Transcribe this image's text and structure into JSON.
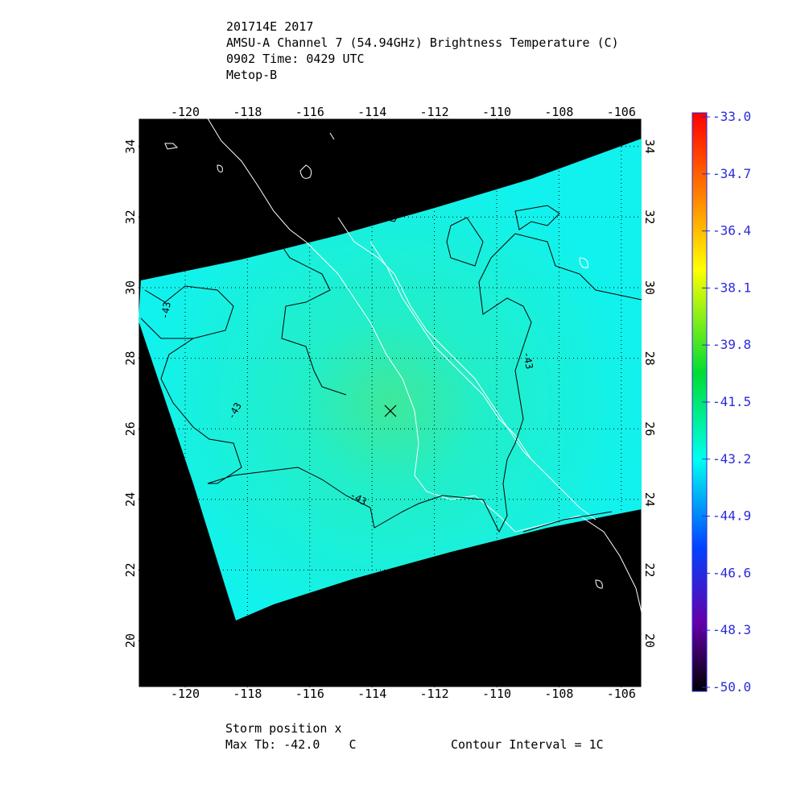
{
  "header": {
    "lines": [
      "201714E 2017",
      "AMSU-A Channel 7 (54.94GHz) Brightness Temperature (C)",
      "0902 Time: 0429 UTC",
      "Metop-B"
    ]
  },
  "map": {
    "lon_ticks": [
      "-120",
      "-118",
      "-116",
      "-114",
      "-112",
      "-110",
      "-108",
      "-106"
    ],
    "lat_ticks": [
      "20",
      "22",
      "24",
      "26",
      "28",
      "30",
      "32",
      "34"
    ],
    "contour_labels": [
      "-43",
      "-43",
      "-43",
      "-43"
    ]
  },
  "colorbar": {
    "ticks": [
      "-33.0",
      "-34.7",
      "-36.4",
      "-38.1",
      "-39.8",
      "-41.5",
      "-43.2",
      "-44.9",
      "-46.6",
      "-48.3",
      "-50.0"
    ]
  },
  "footer": {
    "storm_position": "Storm position x",
    "max_tb": "Max Tb: -42.0    C",
    "contour_interval": "Contour Interval = 1C"
  }
}
